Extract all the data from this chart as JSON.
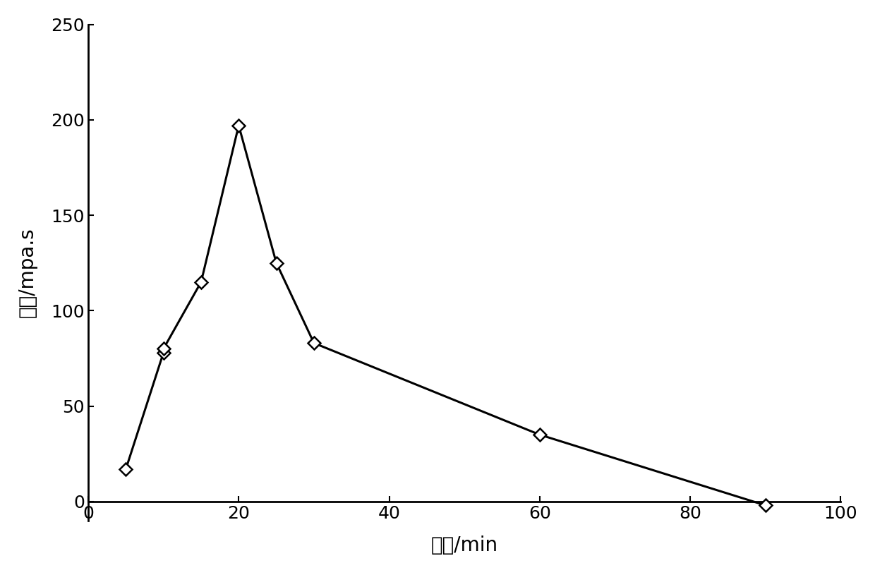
{
  "x": [
    5,
    10,
    10,
    15,
    20,
    25,
    30,
    60,
    90
  ],
  "y": [
    17,
    78,
    80,
    115,
    197,
    125,
    83,
    35,
    -2
  ],
  "xlabel": "时间/min",
  "ylabel": "黏度/mpa.s",
  "xlim": [
    0,
    100
  ],
  "ylim": [
    -10,
    250
  ],
  "xticks": [
    0,
    20,
    40,
    60,
    80,
    100
  ],
  "yticks": [
    0,
    50,
    100,
    150,
    200,
    250
  ],
  "line_color": "#000000",
  "marker": "D",
  "marker_size": 9,
  "marker_facecolor": "white",
  "marker_edgecolor": "#000000",
  "line_width": 2.2,
  "background_color": "#ffffff",
  "xlabel_fontsize": 20,
  "ylabel_fontsize": 20,
  "tick_fontsize": 18
}
